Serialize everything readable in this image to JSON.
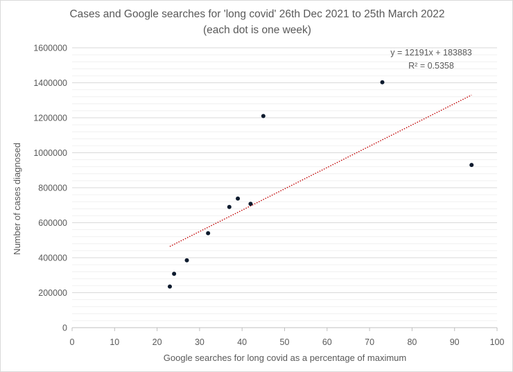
{
  "chart_data": {
    "type": "scatter",
    "title": "Cases and Google searches for 'long covid' 26th Dec 2021 to 25th March 2022",
    "subtitle": "(each dot is one week)",
    "xlabel": "Google searches for long covid as a percentage of maximum",
    "ylabel": "Number of cases diagnosed",
    "xlim": [
      0,
      100
    ],
    "ylim": [
      0,
      1600000
    ],
    "x_ticks": [
      "0",
      "10",
      "20",
      "30",
      "40",
      "50",
      "60",
      "70",
      "80",
      "90",
      "100"
    ],
    "y_ticks": [
      "0",
      "200000",
      "400000",
      "600000",
      "800000",
      "1000000",
      "1200000",
      "1400000",
      "1600000"
    ],
    "grid": "horizontal major and minor",
    "points": [
      {
        "x": 23,
        "y": 235000
      },
      {
        "x": 24,
        "y": 308000
      },
      {
        "x": 27,
        "y": 385000
      },
      {
        "x": 32,
        "y": 540000
      },
      {
        "x": 37,
        "y": 690000
      },
      {
        "x": 39,
        "y": 738000
      },
      {
        "x": 42,
        "y": 708000
      },
      {
        "x": 45,
        "y": 1210000
      },
      {
        "x": 73,
        "y": 1403000
      },
      {
        "x": 94,
        "y": 930000
      }
    ],
    "trendline": {
      "type": "linear",
      "slope": 12191,
      "intercept": 183883,
      "x_range": [
        23,
        94
      ],
      "equation": "y = 12191x + 183883",
      "r_squared": "R² = 0.5358"
    },
    "colors": {
      "points": "#0d1b2e",
      "trendline": "#c00000",
      "grid": "#d9d9d9",
      "minor_grid": "#ededed",
      "axis": "#bfbfbf",
      "text": "#595959"
    }
  }
}
